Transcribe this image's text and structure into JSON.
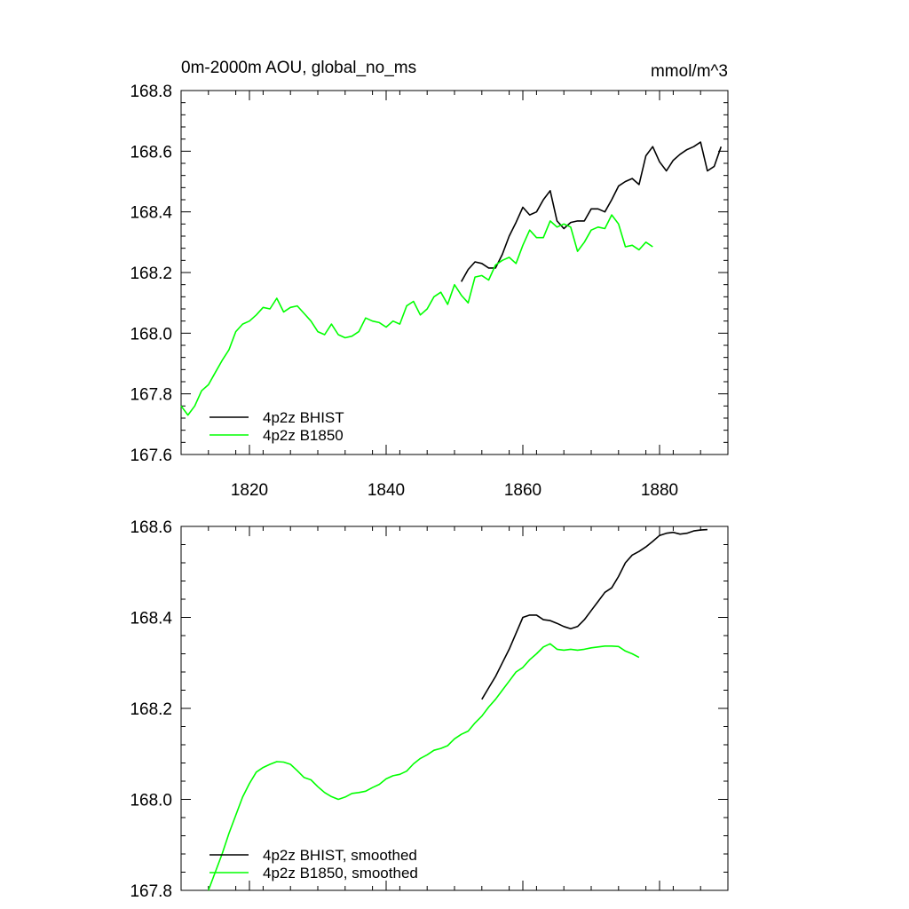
{
  "chart_data": [
    {
      "type": "line",
      "title": "0m-2000m AOU, global_no_ms",
      "units": "mmol/m^3",
      "xlim": [
        1810,
        1890
      ],
      "ylim": [
        167.6,
        168.8
      ],
      "x_ticks": [
        1820,
        1840,
        1860,
        1880
      ],
      "x_tick_labels": [
        "1820",
        "1840",
        "1860",
        "1880"
      ],
      "y_ticks": [
        167.6,
        167.8,
        168.0,
        168.2,
        168.4,
        168.6,
        168.8
      ],
      "y_tick_labels": [
        "167.6",
        "167.8",
        "168.0",
        "168.2",
        "168.4",
        "168.6",
        "168.8"
      ],
      "legend_position": "bottom-left",
      "grid": false,
      "series": [
        {
          "name": "4p2z BHIST",
          "color": "#000000",
          "x": [
            1851,
            1852,
            1853,
            1854,
            1855,
            1856,
            1857,
            1858,
            1859,
            1860,
            1861,
            1862,
            1863,
            1864,
            1865,
            1866,
            1867,
            1868,
            1869,
            1870,
            1871,
            1872,
            1873,
            1874,
            1875,
            1876,
            1877,
            1878,
            1879,
            1880,
            1881,
            1882,
            1883,
            1884,
            1885,
            1886,
            1887,
            1888,
            1889
          ],
          "y": [
            168.17,
            168.21,
            168.235,
            168.23,
            168.215,
            168.215,
            168.26,
            168.32,
            168.365,
            168.415,
            168.39,
            168.4,
            168.44,
            168.47,
            168.37,
            168.345,
            168.365,
            168.37,
            168.37,
            168.41,
            168.41,
            168.4,
            168.44,
            168.485,
            168.5,
            168.51,
            168.49,
            168.585,
            168.615,
            168.565,
            168.535,
            168.57,
            168.59,
            168.605,
            168.615,
            168.63,
            168.535,
            168.55,
            168.615
          ]
        },
        {
          "name": "4p2z B1850",
          "color": "#00ff00",
          "x": [
            1810,
            1811,
            1812,
            1813,
            1814,
            1815,
            1816,
            1817,
            1818,
            1819,
            1820,
            1821,
            1822,
            1823,
            1824,
            1825,
            1826,
            1827,
            1828,
            1829,
            1830,
            1831,
            1832,
            1833,
            1834,
            1835,
            1836,
            1837,
            1838,
            1839,
            1840,
            1841,
            1842,
            1843,
            1844,
            1845,
            1846,
            1847,
            1848,
            1849,
            1850,
            1851,
            1852,
            1853,
            1854,
            1855,
            1856,
            1857,
            1858,
            1859,
            1860,
            1861,
            1862,
            1863,
            1864,
            1865,
            1866,
            1867,
            1868,
            1869,
            1870,
            1871,
            1872,
            1873,
            1874,
            1875,
            1876,
            1877,
            1878,
            1879
          ],
          "y": [
            167.76,
            167.73,
            167.76,
            167.81,
            167.83,
            167.87,
            167.91,
            167.945,
            168.005,
            168.03,
            168.04,
            168.06,
            168.085,
            168.08,
            168.115,
            168.07,
            168.085,
            168.09,
            168.065,
            168.04,
            168.005,
            167.995,
            168.03,
            167.995,
            167.985,
            167.99,
            168.005,
            168.05,
            168.04,
            168.035,
            168.02,
            168.04,
            168.03,
            168.09,
            168.105,
            168.06,
            168.08,
            168.12,
            168.135,
            168.095,
            168.16,
            168.125,
            168.1,
            168.185,
            168.19,
            168.175,
            168.225,
            168.24,
            168.25,
            168.23,
            168.29,
            168.34,
            168.315,
            168.315,
            168.37,
            168.35,
            168.36,
            168.35,
            168.27,
            168.3,
            168.34,
            168.35,
            168.345,
            168.39,
            168.36,
            168.285,
            168.29,
            168.275,
            168.3,
            168.285
          ]
        }
      ]
    },
    {
      "type": "line",
      "xlim": [
        1810,
        1890
      ],
      "ylim": [
        167.8,
        168.6
      ],
      "x_ticks": [
        1820,
        1840,
        1860,
        1880
      ],
      "y_ticks": [
        167.8,
        168.0,
        168.2,
        168.4,
        168.6
      ],
      "y_tick_labels": [
        "167.8",
        "168.0",
        "168.2",
        "168.4",
        "168.6"
      ],
      "legend_position": "bottom-left",
      "grid": false,
      "series": [
        {
          "name": "4p2z BHIST, smoothed",
          "color": "#000000",
          "x": [
            1854,
            1855,
            1856,
            1857,
            1858,
            1859,
            1860,
            1861,
            1862,
            1863,
            1864,
            1865,
            1866,
            1867,
            1868,
            1869,
            1870,
            1871,
            1872,
            1873,
            1874,
            1875,
            1876,
            1877,
            1878,
            1879,
            1880,
            1881,
            1882,
            1883,
            1884,
            1885,
            1886,
            1887
          ],
          "y": [
            168.22,
            168.245,
            168.27,
            168.3,
            168.33,
            168.365,
            168.4,
            168.405,
            168.405,
            168.395,
            168.393,
            168.387,
            168.38,
            168.375,
            168.38,
            168.395,
            168.415,
            168.435,
            168.455,
            168.465,
            168.49,
            168.52,
            168.537,
            168.545,
            168.555,
            168.567,
            168.58,
            168.585,
            168.587,
            168.583,
            168.585,
            168.59,
            168.592,
            168.593
          ]
        },
        {
          "name": "4p2z B1850, smoothed",
          "color": "#00ff00",
          "x": [
            1814,
            1815,
            1816,
            1817,
            1818,
            1819,
            1820,
            1821,
            1822,
            1823,
            1824,
            1825,
            1826,
            1827,
            1828,
            1829,
            1830,
            1831,
            1832,
            1833,
            1834,
            1835,
            1836,
            1837,
            1838,
            1839,
            1840,
            1841,
            1842,
            1843,
            1844,
            1845,
            1846,
            1847,
            1848,
            1849,
            1850,
            1851,
            1852,
            1853,
            1854,
            1855,
            1856,
            1857,
            1858,
            1859,
            1860,
            1861,
            1862,
            1863,
            1864,
            1865,
            1866,
            1867,
            1868,
            1869,
            1870,
            1871,
            1872,
            1873,
            1874,
            1875,
            1876,
            1877
          ],
          "y": [
            167.8,
            167.84,
            167.88,
            167.925,
            167.965,
            168.005,
            168.035,
            168.06,
            168.07,
            168.077,
            168.083,
            168.082,
            168.077,
            168.063,
            168.048,
            168.043,
            168.028,
            168.015,
            168.006,
            168.0,
            168.005,
            168.013,
            168.015,
            168.018,
            168.026,
            168.033,
            168.045,
            168.052,
            168.055,
            168.062,
            168.078,
            168.09,
            168.098,
            168.108,
            168.112,
            168.118,
            168.133,
            168.143,
            168.15,
            168.168,
            168.183,
            168.203,
            168.22,
            168.24,
            168.26,
            168.28,
            168.29,
            168.307,
            168.32,
            168.335,
            168.342,
            168.33,
            168.328,
            168.33,
            168.328,
            168.33,
            168.333,
            168.335,
            168.337,
            168.337,
            168.336,
            168.326,
            168.32,
            168.312
          ]
        }
      ]
    }
  ]
}
